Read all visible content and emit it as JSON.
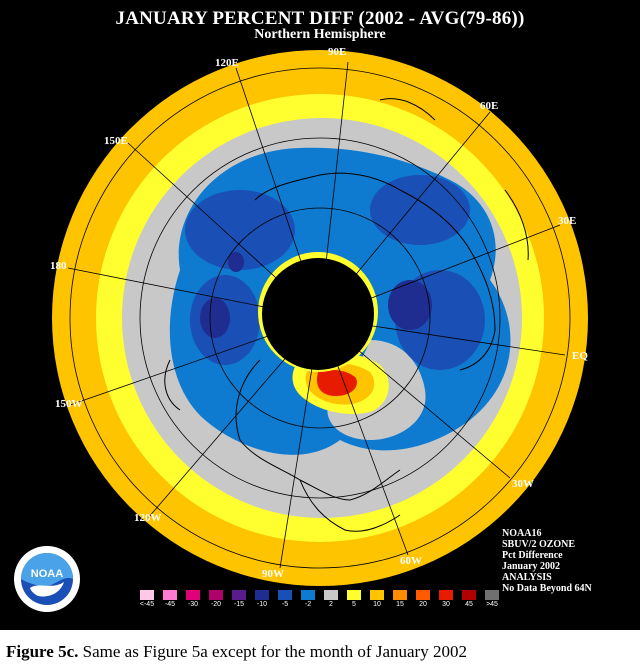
{
  "title": "JANUARY PERCENT DIFF (2002 - AVG(79-86))",
  "subtitle": "Northern Hemisphere",
  "longitude_labels": {
    "e120": "120E",
    "e90": "90E",
    "e60": "60E",
    "e30": "30E",
    "e150": "150E",
    "d180": "180",
    "eq": "EQ",
    "w150": "150W",
    "w120": "120W",
    "w90": "90W",
    "w60": "60W",
    "w30": "30W"
  },
  "info": {
    "line1": "NOAA16",
    "line2": "SBUV/2 OZONE",
    "line3": "Pct Difference",
    "line4": "January 2002",
    "line5": "ANALYSIS",
    "line6": "No Data Beyond 64N"
  },
  "legend": {
    "labels": [
      "<-45",
      "-45",
      "-30",
      "-20",
      "-15",
      "-10",
      "-5",
      "-2",
      "2",
      "5",
      "10",
      "15",
      "20",
      "30",
      "45",
      ">45"
    ],
    "colors": [
      "#ffc8e6",
      "#ff7ad0",
      "#e0007a",
      "#b0006a",
      "#5a1b8c",
      "#1e2d8f",
      "#1a4fb5",
      "#0e7bd1",
      "#c8c8c8",
      "#ffff30",
      "#ffc400",
      "#ff8c00",
      "#ff5a00",
      "#e61b00",
      "#b00000",
      "#707070"
    ]
  },
  "logo_text": "NOAA",
  "caption": {
    "label": "Figure 5c.",
    "text": " Same as Figure 5a except for the month of January 2002"
  },
  "colors": {
    "background": "#000000",
    "outer_ring": "#ffc400",
    "yellow": "#ffff30",
    "gray": "#c8c8c8",
    "blue": "#0e7bd1",
    "dark_blue": "#1a4fb5",
    "navy": "#1e2d8f"
  }
}
